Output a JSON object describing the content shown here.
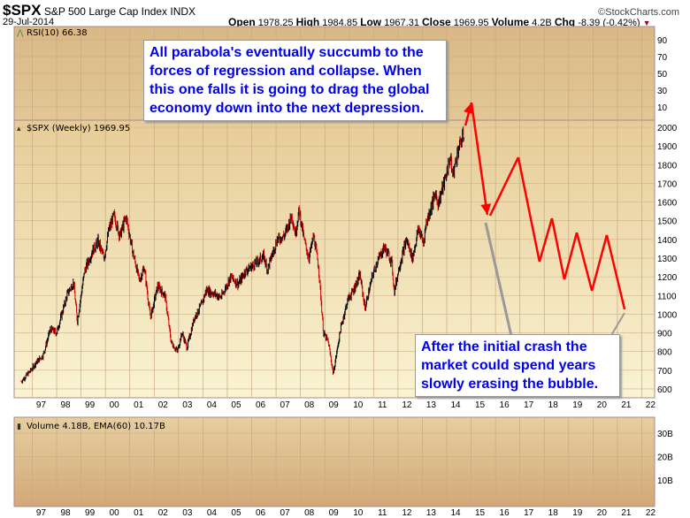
{
  "header": {
    "symbol": "$SPX",
    "name": "S&P 500 Large Cap Index",
    "exchange": "INDX",
    "date": "29-Jul-2014",
    "brand": "©StockCharts.com",
    "open_label": "Open",
    "open": "1978.25",
    "high_label": "High",
    "high": "1984.85",
    "low_label": "Low",
    "low": "1967.31",
    "close_label": "Close",
    "close": "1969.95",
    "volume_label": "Volume",
    "volume": "4.2B",
    "chg_label": "Chg",
    "chg": "-8.39 (-0.42%)",
    "chg_icon": "down-triangle"
  },
  "panels": {
    "rsi_label": "RSI(10) 66.38",
    "price_label": "$SPX (Weekly) 1969.95",
    "volume_label": "Volume 4.18B, EMA(60) 10.17B"
  },
  "annotations": {
    "top": "All parabola's eventually succumb to the forces of regression and collapse. When this one falls it is going to drag the global economy down into the next depression.",
    "bottom": "After the initial crash the market could spend years slowly erasing the bubble."
  },
  "colors": {
    "price_bar": "#000000",
    "down_bar": "#cc0000",
    "forecast": "#ff0000",
    "pointer": "#999999"
  },
  "chart_data": {
    "type": "line",
    "title": "$SPX (Weekly)",
    "x_tick_labels": [
      "97",
      "98",
      "99",
      "00",
      "01",
      "02",
      "03",
      "04",
      "05",
      "06",
      "07",
      "08",
      "09",
      "10",
      "11",
      "12",
      "13",
      "14",
      "15",
      "16",
      "17",
      "18",
      "19",
      "20",
      "21",
      "22"
    ],
    "xlim": [
      1996.3,
      2022.4
    ],
    "price": {
      "ylim": [
        600,
        2030
      ],
      "ticks": [
        600,
        700,
        800,
        900,
        1000,
        1100,
        1200,
        1300,
        1400,
        1500,
        1600,
        1700,
        1800,
        1900,
        2000
      ],
      "series": [
        [
          1996.4,
          640
        ],
        [
          1996.8,
          700
        ],
        [
          1997.0,
          740
        ],
        [
          1997.3,
          780
        ],
        [
          1997.6,
          920
        ],
        [
          1997.85,
          900
        ],
        [
          1998.0,
          970
        ],
        [
          1998.3,
          1110
        ],
        [
          1998.55,
          1170
        ],
        [
          1998.7,
          960
        ],
        [
          1999.0,
          1230
        ],
        [
          1999.3,
          1330
        ],
        [
          1999.55,
          1390
        ],
        [
          1999.8,
          1300
        ],
        [
          2000.0,
          1450
        ],
        [
          2000.2,
          1530
        ],
        [
          2000.45,
          1420
        ],
        [
          2000.7,
          1520
        ],
        [
          2001.0,
          1320
        ],
        [
          2001.25,
          1180
        ],
        [
          2001.45,
          1250
        ],
        [
          2001.7,
          980
        ],
        [
          2002.0,
          1150
        ],
        [
          2002.3,
          1100
        ],
        [
          2002.55,
          850
        ],
        [
          2002.8,
          800
        ],
        [
          2003.0,
          900
        ],
        [
          2003.2,
          820
        ],
        [
          2003.5,
          980
        ],
        [
          2003.8,
          1050
        ],
        [
          2004.0,
          1130
        ],
        [
          2004.6,
          1090
        ],
        [
          2005.0,
          1200
        ],
        [
          2005.3,
          1160
        ],
        [
          2005.6,
          1230
        ],
        [
          2006.0,
          1270
        ],
        [
          2006.35,
          1310
        ],
        [
          2006.5,
          1240
        ],
        [
          2006.9,
          1400
        ],
        [
          2007.2,
          1420
        ],
        [
          2007.5,
          1530
        ],
        [
          2007.65,
          1430
        ],
        [
          2007.8,
          1560
        ],
        [
          2008.0,
          1400
        ],
        [
          2008.2,
          1300
        ],
        [
          2008.4,
          1420
        ],
        [
          2008.6,
          1250
        ],
        [
          2008.8,
          900
        ],
        [
          2009.0,
          850
        ],
        [
          2009.2,
          680
        ],
        [
          2009.5,
          920
        ],
        [
          2009.8,
          1080
        ],
        [
          2010.0,
          1120
        ],
        [
          2010.3,
          1210
        ],
        [
          2010.5,
          1030
        ],
        [
          2010.8,
          1200
        ],
        [
          2011.0,
          1280
        ],
        [
          2011.3,
          1360
        ],
        [
          2011.6,
          1280
        ],
        [
          2011.7,
          1120
        ],
        [
          2011.9,
          1250
        ],
        [
          2012.2,
          1400
        ],
        [
          2012.45,
          1300
        ],
        [
          2012.7,
          1460
        ],
        [
          2012.9,
          1380
        ],
        [
          2013.0,
          1480
        ],
        [
          2013.4,
          1650
        ],
        [
          2013.5,
          1590
        ],
        [
          2013.8,
          1730
        ],
        [
          2014.0,
          1840
        ],
        [
          2014.1,
          1740
        ],
        [
          2014.3,
          1870
        ],
        [
          2014.57,
          1970
        ]
      ]
    },
    "forecast": [
      [
        2014.62,
        2009
      ],
      [
        2014.87,
        2132
      ],
      [
        2015.52,
        1532
      ],
      [
        2015.63,
        1527
      ],
      [
        2016.79,
        1839
      ],
      [
        2017.66,
        1281
      ],
      [
        2018.17,
        1513
      ],
      [
        2018.68,
        1186
      ],
      [
        2019.19,
        1437
      ],
      [
        2019.81,
        1125
      ],
      [
        2020.42,
        1423
      ],
      [
        2021.15,
        1026
      ]
    ],
    "rsi": {
      "ticks": [
        90,
        70,
        50,
        30,
        10
      ]
    },
    "volume": {
      "ticks": [
        "10B",
        "20B",
        "30B"
      ]
    }
  }
}
